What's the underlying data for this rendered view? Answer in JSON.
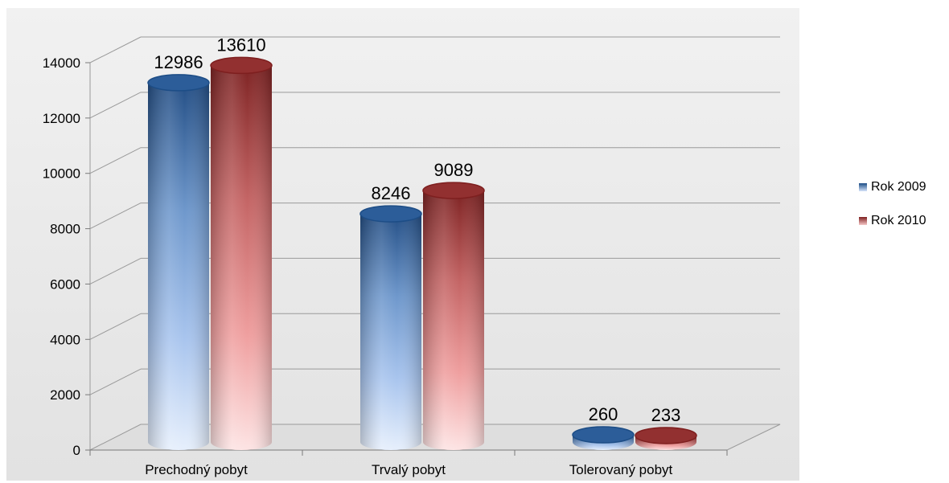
{
  "colors": {
    "plot_background": "#ebebeb",
    "grid": "#9a9a9a",
    "rok2009_dark": "#1d4d86",
    "rok2009_light": "#d6e4fa",
    "rok2010_dark": "#7e1f1f",
    "rok2010_light": "#f6c8c8"
  },
  "chart_data": {
    "type": "bar",
    "style": "3d-cylinder",
    "categories": [
      "Prechodný pobyt",
      "Trvalý pobyt",
      "Tolerovaný pobyt"
    ],
    "series": [
      {
        "name": "Rok 2009",
        "values": [
          12986,
          8246,
          260
        ]
      },
      {
        "name": "Rok 2010",
        "values": [
          13610,
          9089,
          233
        ]
      }
    ],
    "data_labels": [
      [
        "12986",
        "8246",
        "260"
      ],
      [
        "13610",
        "9089",
        "233"
      ]
    ],
    "y_ticks": [
      "0",
      "2000",
      "4000",
      "6000",
      "8000",
      "10000",
      "12000",
      "14000"
    ],
    "ylim": [
      0,
      14000
    ],
    "grid": true,
    "legend_position": "right",
    "title": "",
    "xlabel": "",
    "ylabel": ""
  },
  "legend": {
    "items": [
      {
        "label": "Rok 2009"
      },
      {
        "label": "Rok 2010"
      }
    ]
  }
}
